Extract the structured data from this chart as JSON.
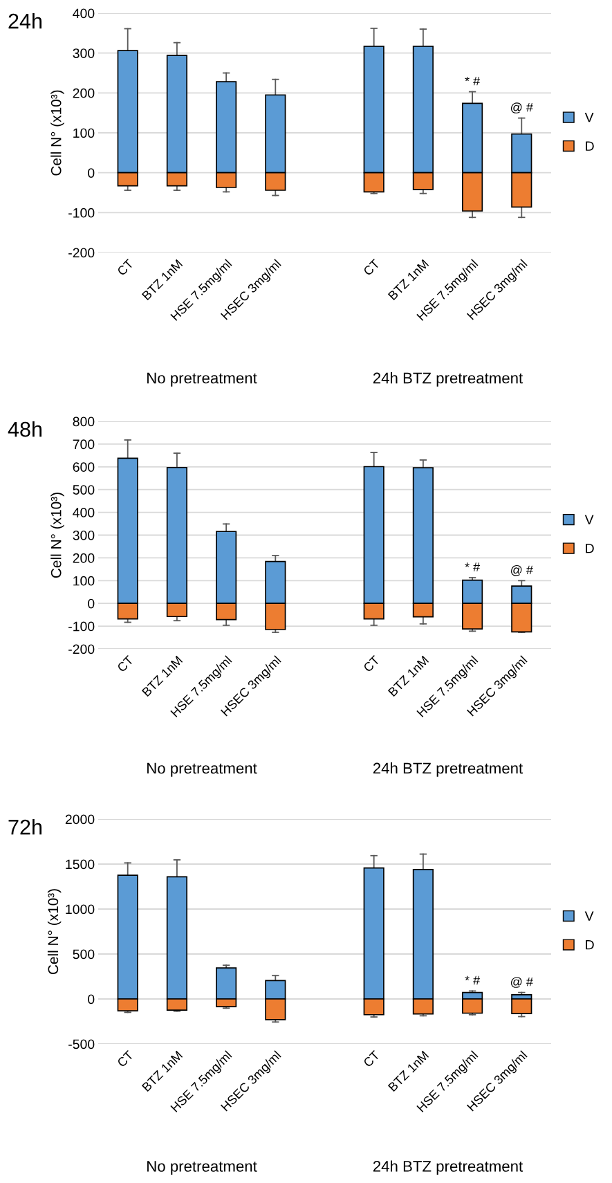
{
  "chart_data": [
    {
      "type": "bar",
      "title": "24h",
      "ylabel": "Cell N° (x10³)",
      "stacked": true,
      "legend": "right",
      "grid": "y",
      "categories": [
        "CT",
        "BTZ 1nM",
        "HSE 7.5mg/ml",
        "HSEC 3mg/ml",
        null,
        "CT",
        "BTZ 1nM",
        "HSE 7.5mg/ml",
        "HSEC 3mg/ml"
      ],
      "ylim": [
        -200,
        400
      ],
      "yticks": [
        -200,
        -100,
        0,
        100,
        200,
        300,
        400
      ],
      "series": [
        {
          "name": "V",
          "color": "#5b9bd5",
          "values": [
            306,
            294,
            228,
            195,
            null,
            317,
            317,
            174,
            97
          ],
          "errors": [
            [
              306,
              361
            ],
            [
              294,
              326
            ],
            [
              228,
              250
            ],
            [
              195,
              234
            ],
            null,
            [
              317,
              362
            ],
            [
              317,
              360
            ],
            [
              174,
              203
            ],
            [
              97,
              137
            ]
          ]
        },
        {
          "name": "D",
          "color": "#ed7d31",
          "values": [
            -33,
            -33,
            -37,
            -44,
            null,
            -48,
            -42,
            -96,
            -86
          ],
          "errors": [
            [
              -44,
              -33
            ],
            [
              -44,
              -33
            ],
            [
              -48,
              -37
            ],
            [
              -57,
              -44
            ],
            null,
            [
              -52,
              -48
            ],
            [
              -52,
              -42
            ],
            [
              -112,
              -96
            ],
            [
              -112,
              -86
            ]
          ]
        }
      ],
      "annotations": [
        "No pretreatment",
        "24h BTZ pretreatment",
        "* #",
        "@ #"
      ]
    },
    {
      "type": "bar",
      "title": "48h",
      "ylabel": "Cell N° (x10³)",
      "stacked": true,
      "legend": "right",
      "grid": "y",
      "categories": [
        "CT",
        "BTZ 1nM",
        "HSE 7.5mg/ml",
        "HSEC 3mg/ml",
        null,
        "CT",
        "BTZ 1nM",
        "HSE 7.5mg/ml",
        "HSEC 3mg/ml"
      ],
      "ylim": [
        -200,
        800
      ],
      "yticks": [
        -200,
        -100,
        0,
        100,
        200,
        300,
        400,
        500,
        600,
        700,
        800
      ],
      "series": [
        {
          "name": "V",
          "color": "#5b9bd5",
          "values": [
            638,
            597,
            316,
            184,
            null,
            601,
            596,
            102,
            76
          ],
          "errors": [
            [
              638,
              718
            ],
            [
              597,
              660
            ],
            [
              316,
              349
            ],
            [
              184,
              210
            ],
            null,
            [
              601,
              663
            ],
            [
              596,
              630
            ],
            [
              102,
              113
            ],
            [
              76,
              100
            ]
          ]
        },
        {
          "name": "D",
          "color": "#ed7d31",
          "values": [
            -68,
            -58,
            -71,
            -115,
            null,
            -68,
            -59,
            -112,
            -125
          ],
          "errors": [
            [
              -83,
              -68
            ],
            [
              -76,
              -58
            ],
            [
              -96,
              -71
            ],
            [
              -127,
              -115
            ],
            null,
            [
              -96,
              -68
            ],
            [
              -90,
              -59
            ],
            [
              -122,
              -112
            ],
            [
              -127,
              -125
            ]
          ]
        }
      ],
      "annotations": [
        "No pretreatment",
        "24h BTZ pretreatment",
        "* #",
        "@ #"
      ]
    },
    {
      "type": "bar",
      "title": "72h",
      "ylabel": "Cell N° (x10³)",
      "stacked": true,
      "legend": "right",
      "grid": "y",
      "categories": [
        "CT",
        "BTZ 1nM",
        "HSE 7.5mg/ml",
        "HSEC 3mg/ml",
        null,
        "CT",
        "BTZ 1nM",
        "HSE 7.5mg/ml",
        "HSEC 3mg/ml"
      ],
      "ylim": [
        -500,
        2000
      ],
      "yticks": [
        -500,
        0,
        500,
        1000,
        1500,
        2000
      ],
      "series": [
        {
          "name": "V",
          "color": "#5b9bd5",
          "values": [
            1376,
            1359,
            345,
            205,
            null,
            1457,
            1440,
            72,
            47
          ],
          "errors": [
            [
              1376,
              1513
            ],
            [
              1359,
              1547
            ],
            [
              345,
              375
            ],
            [
              205,
              260
            ],
            null,
            [
              1457,
              1594
            ],
            [
              1440,
              1611
            ],
            [
              72,
              89
            ],
            [
              47,
              72
            ]
          ]
        },
        {
          "name": "D",
          "color": "#ed7d31",
          "values": [
            -132,
            -124,
            -85,
            -230,
            null,
            -175,
            -166,
            -158,
            -162
          ],
          "errors": [
            [
              -149,
              -132
            ],
            [
              -136,
              -124
            ],
            [
              -102,
              -85
            ],
            [
              -256,
              -230
            ],
            null,
            [
              -200,
              -175
            ],
            [
              -187,
              -166
            ],
            [
              -175,
              -158
            ],
            [
              -196,
              -162
            ]
          ]
        }
      ],
      "annotations": [
        "No pretreatment",
        "24h BTZ pretreatment",
        "* #",
        "@ #"
      ]
    }
  ]
}
